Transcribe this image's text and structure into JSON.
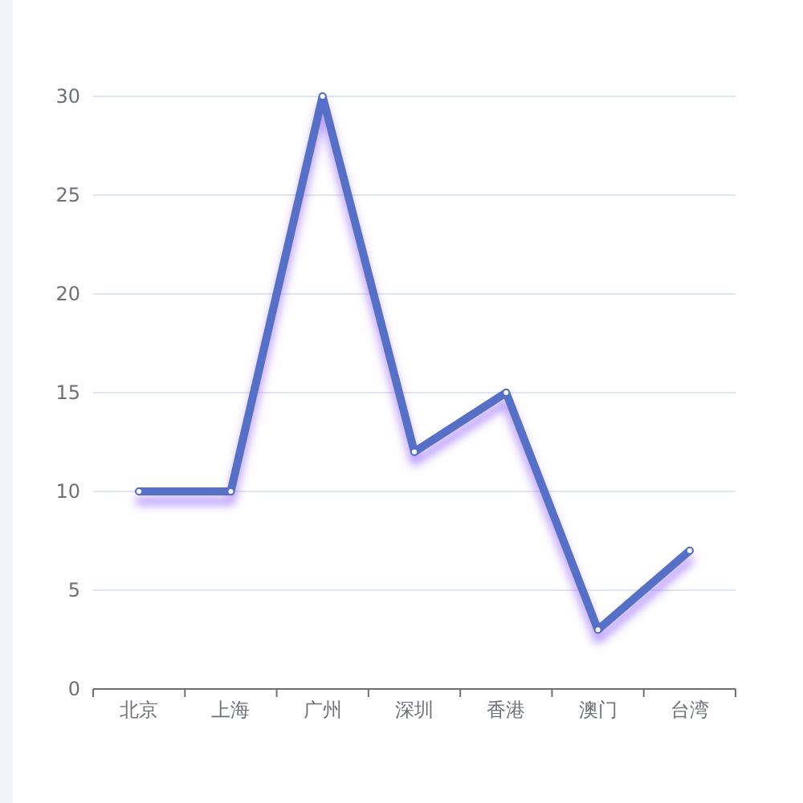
{
  "chart_data": {
    "type": "line",
    "categories": [
      "北京",
      "上海",
      "广州",
      "深圳",
      "香港",
      "澳门",
      "台湾"
    ],
    "series": [
      {
        "color": "#5470c6",
        "values": [
          10,
          10,
          30,
          12,
          15,
          3,
          7
        ]
      }
    ],
    "ylim": [
      0,
      30
    ],
    "yticks": [
      0,
      5,
      10,
      15,
      20,
      25,
      30
    ],
    "grid": "y",
    "marker": "circle",
    "line_style": "solid"
  }
}
